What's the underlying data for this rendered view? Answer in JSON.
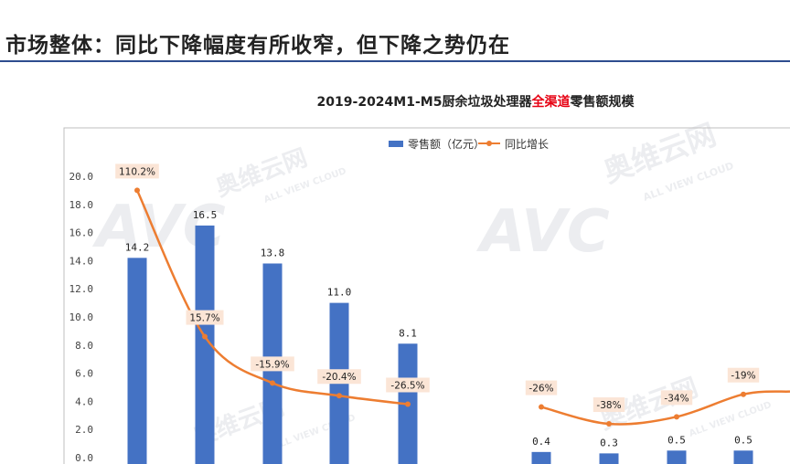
{
  "page": {
    "title": "市场整体：同比下降幅度有所收窄，但下降之势仍在"
  },
  "watermark": {
    "logo": "AVC",
    "cn": "奥维云网",
    "en": "ALL VIEW CLOUD"
  },
  "colors": {
    "bar": "#4472c4",
    "line": "#ed7d31",
    "label_bg": "#fbe5d6",
    "title_highlight": "#e60012",
    "header_rule": "#2e4d8f"
  },
  "chart_data": {
    "type": "bar",
    "title_parts": [
      {
        "text": "2019-2024M1-M5厨余垃圾处理器",
        "highlight": false
      },
      {
        "text": "全渠道",
        "highlight": true
      },
      {
        "text": "零售额规模",
        "highlight": false
      }
    ],
    "ylim": [
      0,
      20
    ],
    "yticks": [
      "0.0",
      "2.0",
      "4.0",
      "6.0",
      "8.0",
      "10.0",
      "12.0",
      "14.0",
      "16.0",
      "18.0",
      "20.0"
    ],
    "legend_position": "top",
    "series": [
      {
        "name": "零售额（亿元）",
        "type": "bar",
        "values": [
          14.2,
          16.5,
          13.8,
          11.0,
          8.1,
          null,
          0.4,
          0.3,
          0.5,
          0.5,
          null
        ],
        "labels": [
          "14.2",
          "16.5",
          "13.8",
          "11.0",
          "8.1",
          null,
          "0.4",
          "0.3",
          "0.5",
          "0.5",
          null
        ]
      },
      {
        "name": "同比增长",
        "type": "line",
        "plot_values": [
          19.0,
          8.6,
          5.3,
          4.4,
          3.8,
          null,
          3.6,
          2.4,
          2.9,
          4.5,
          4.7
        ],
        "labels": [
          "110.2%",
          "15.7%",
          "-15.9%",
          "-20.4%",
          "-26.5%",
          null,
          "-26%",
          "-38%",
          "-34%",
          "-19%",
          null
        ]
      }
    ]
  }
}
